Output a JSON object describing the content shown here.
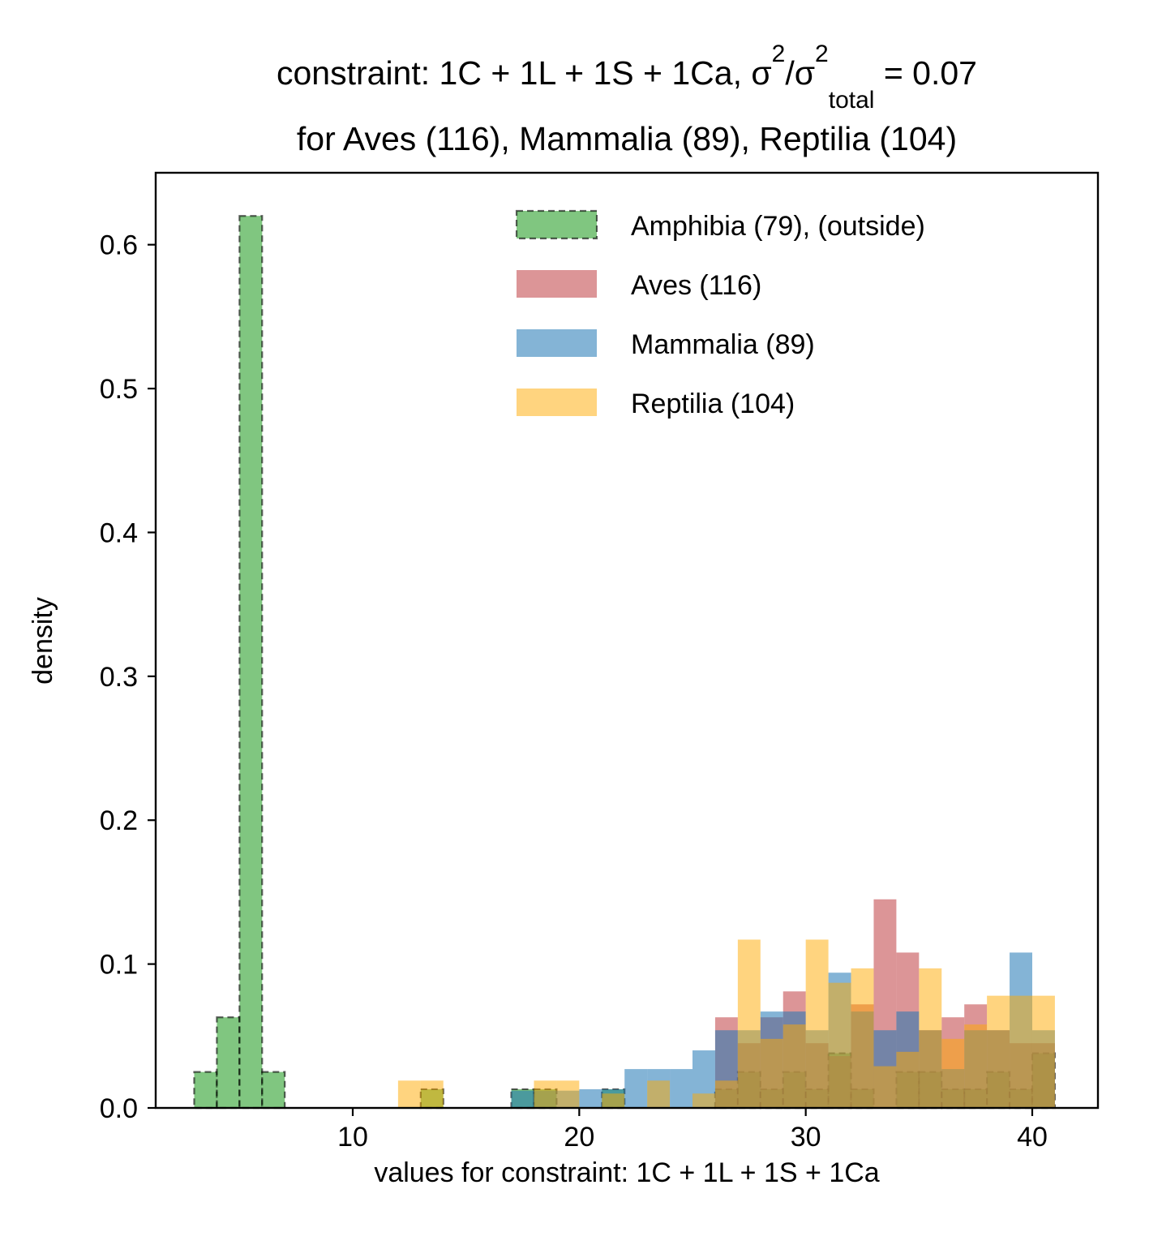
{
  "chart_data": {
    "type": "bar",
    "subtype": "overlaid-histogram",
    "title_line1": {
      "prefix": "constraint: 1C + 1L + 1S + 1Ca, σ",
      "sup1": "2",
      "mid": "/σ",
      "sup2": "2",
      "sub": "total",
      "suffix": " =  0.07"
    },
    "title_line2": "for Aves (116), Mammalia (89), Reptilia (104)",
    "xlabel": "values for constraint: 1C + 1L + 1S + 1Ca",
    "ylabel": "density",
    "xlim": [
      1.3,
      42.9
    ],
    "ylim": [
      0,
      0.65
    ],
    "xticks": [
      10,
      20,
      30,
      40
    ],
    "yticks": [
      0.0,
      0.1,
      0.2,
      0.3,
      0.4,
      0.5,
      0.6
    ],
    "ytick_labels": [
      "0.0",
      "0.1",
      "0.2",
      "0.3",
      "0.4",
      "0.5",
      "0.6"
    ],
    "grid": false,
    "legend_position": "top-right",
    "series": [
      {
        "name": "Amphibia (79), (outside)",
        "color": "#2ca02c",
        "alpha": 0.6,
        "dashed_edge": true,
        "bins": [
          [
            3,
            4,
            0.025
          ],
          [
            4,
            5,
            0.063
          ],
          [
            5,
            6,
            0.62
          ],
          [
            6,
            7,
            0.025
          ],
          [
            13,
            14,
            0.013
          ],
          [
            17,
            18,
            0.013
          ],
          [
            18,
            19,
            0.013
          ],
          [
            21,
            22,
            0.013
          ],
          [
            26,
            27,
            0.013
          ],
          [
            27,
            28,
            0.025
          ],
          [
            28,
            29,
            0.013
          ],
          [
            29,
            30,
            0.025
          ],
          [
            30,
            31,
            0.013
          ],
          [
            31,
            32,
            0.038
          ],
          [
            32,
            33,
            0.013
          ],
          [
            34,
            35,
            0.025
          ],
          [
            35,
            36,
            0.025
          ],
          [
            36,
            37,
            0.013
          ],
          [
            37,
            38,
            0.013
          ],
          [
            38,
            39,
            0.025
          ],
          [
            39,
            40,
            0.013
          ],
          [
            40,
            41,
            0.038
          ]
        ]
      },
      {
        "name": "Aves (116)",
        "color": "#c44e52",
        "alpha": 0.6,
        "dashed_edge": false,
        "bins": [
          [
            26,
            27,
            0.063
          ],
          [
            27,
            28,
            0.045
          ],
          [
            28,
            29,
            0.063
          ],
          [
            29,
            30,
            0.081
          ],
          [
            30,
            31,
            0.045
          ],
          [
            31,
            32,
            0.036
          ],
          [
            32,
            33,
            0.072
          ],
          [
            33,
            34,
            0.145
          ],
          [
            34,
            35,
            0.108
          ],
          [
            35,
            36,
            0.054
          ],
          [
            36,
            37,
            0.063
          ],
          [
            37,
            38,
            0.072
          ],
          [
            38,
            39,
            0.054
          ],
          [
            39,
            40,
            0.045
          ],
          [
            40,
            41,
            0.045
          ]
        ]
      },
      {
        "name": "Mammalia (89)",
        "color": "#1f77b4",
        "alpha": 0.55,
        "dashed_edge": false,
        "bins": [
          [
            17,
            18,
            0.012
          ],
          [
            18,
            19,
            0.012
          ],
          [
            19,
            20,
            0.012
          ],
          [
            20,
            21,
            0.013
          ],
          [
            21,
            22,
            0.013
          ],
          [
            22,
            23,
            0.027
          ],
          [
            23,
            24,
            0.027
          ],
          [
            24,
            25,
            0.027
          ],
          [
            25,
            26,
            0.04
          ],
          [
            26,
            27,
            0.054
          ],
          [
            27,
            28,
            0.054
          ],
          [
            28,
            29,
            0.067
          ],
          [
            29,
            30,
            0.067
          ],
          [
            30,
            31,
            0.054
          ],
          [
            31,
            32,
            0.094
          ],
          [
            32,
            33,
            0.067
          ],
          [
            33,
            34,
            0.054
          ],
          [
            34,
            35,
            0.067
          ],
          [
            35,
            36,
            0.054
          ],
          [
            36,
            37,
            0.027
          ],
          [
            37,
            38,
            0.054
          ],
          [
            38,
            39,
            0.054
          ],
          [
            39,
            40,
            0.108
          ],
          [
            40,
            41,
            0.054
          ]
        ]
      },
      {
        "name": "Reptilia (104)",
        "color": "#ffaa00",
        "alpha": 0.5,
        "dashed_edge": false,
        "bins": [
          [
            12,
            13,
            0.019
          ],
          [
            13,
            14,
            0.019
          ],
          [
            18,
            19,
            0.019
          ],
          [
            19,
            20,
            0.019
          ],
          [
            21,
            22,
            0.01
          ],
          [
            23,
            24,
            0.019
          ],
          [
            25,
            26,
            0.01
          ],
          [
            26,
            27,
            0.019
          ],
          [
            27,
            28,
            0.117
          ],
          [
            28,
            29,
            0.048
          ],
          [
            29,
            30,
            0.058
          ],
          [
            30,
            31,
            0.117
          ],
          [
            31,
            32,
            0.087
          ],
          [
            32,
            33,
            0.097
          ],
          [
            33,
            34,
            0.029
          ],
          [
            34,
            35,
            0.039
          ],
          [
            35,
            36,
            0.097
          ],
          [
            36,
            37,
            0.048
          ],
          [
            37,
            38,
            0.058
          ],
          [
            38,
            39,
            0.078
          ],
          [
            39,
            40,
            0.078
          ],
          [
            40,
            41,
            0.078
          ]
        ]
      }
    ]
  }
}
